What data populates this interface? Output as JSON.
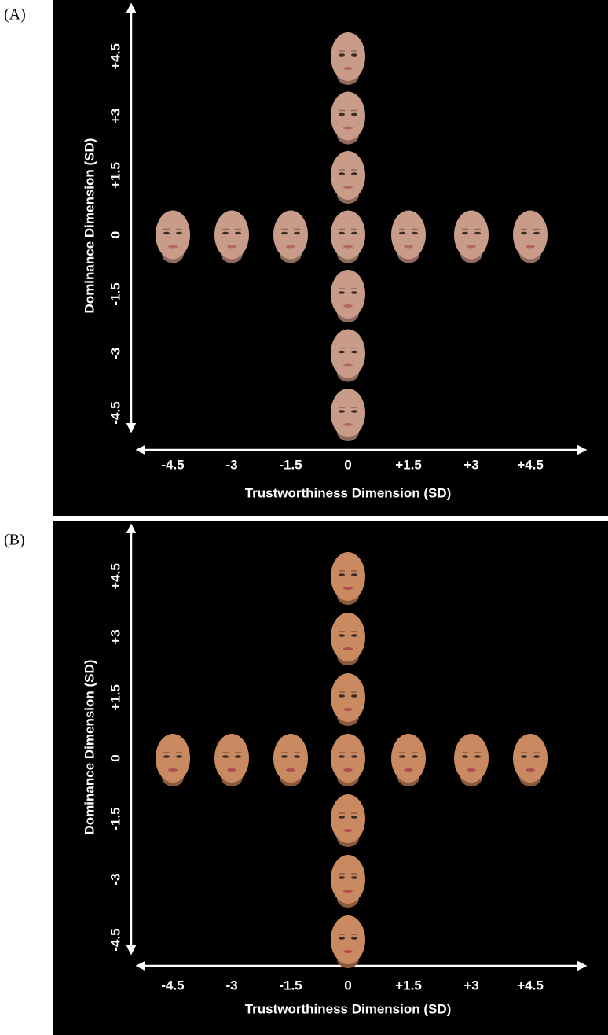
{
  "panels": [
    {
      "label": "(A)",
      "y_axis_title": "Dominance Dimension (SD)",
      "x_axis_title": "Trustworthiness Dimension (SD)",
      "y_ticks": [
        "+4.5",
        "+3",
        "+1.5",
        "0",
        "-1.5",
        "-3",
        "-4.5"
      ],
      "x_ticks": [
        "-4.5",
        "-3",
        "-1.5",
        "0",
        "+1.5",
        "+3",
        "+4.5"
      ]
    },
    {
      "label": "(B)",
      "y_axis_title": "Dominance Dimension (SD)",
      "x_axis_title": "Trustworthiness Dimension (SD)",
      "y_ticks": [
        "+4.5",
        "+3",
        "+1.5",
        "0",
        "-1.5",
        "-3",
        "-4.5"
      ],
      "x_ticks": [
        "-4.5",
        "-3",
        "-1.5",
        "0",
        "+1.5",
        "+3",
        "+4.5"
      ]
    }
  ]
}
